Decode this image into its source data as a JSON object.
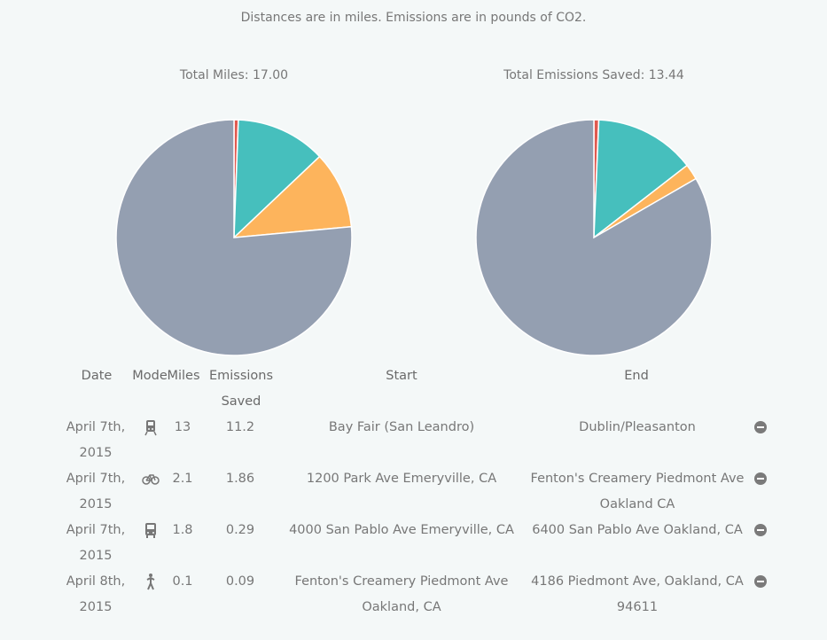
{
  "note": "Distances are in miles. Emissions are in pounds of CO2.",
  "colors": {
    "red": "#e05a4f",
    "teal": "#46bfbd",
    "orange": "#fdb45c",
    "gray": "#949fb1"
  },
  "chart_data": [
    {
      "type": "pie",
      "title": "Total Miles: 17.00",
      "slices": [
        {
          "value": 0.1,
          "color": "#e05a4f"
        },
        {
          "value": 2.1,
          "color": "#46bfbd"
        },
        {
          "value": 1.8,
          "color": "#fdb45c"
        },
        {
          "value": 13,
          "color": "#949fb1"
        }
      ]
    },
    {
      "type": "pie",
      "title": "Total Emissions Saved: 13.44",
      "slices": [
        {
          "value": 0.09,
          "color": "#e05a4f"
        },
        {
          "value": 1.86,
          "color": "#46bfbd"
        },
        {
          "value": 0.29,
          "color": "#fdb45c"
        },
        {
          "value": 11.2,
          "color": "#949fb1"
        }
      ]
    }
  ],
  "table": {
    "headers": {
      "date": "Date",
      "mode": "Mode",
      "miles": "Miles",
      "emissions_line1": "Emissions",
      "emissions_line2": "Saved",
      "start": "Start",
      "end": "End"
    },
    "rows": [
      {
        "date1": "April 7th,",
        "date2": "2015",
        "mode_icon": "train-icon",
        "miles": "13",
        "emissions": "11.2",
        "start1": "Bay Fair (San Leandro)",
        "start2": "",
        "end1": "Dublin/Pleasanton",
        "end2": ""
      },
      {
        "date1": "April 7th,",
        "date2": "2015",
        "mode_icon": "bicycle-icon",
        "miles": "2.1",
        "emissions": "1.86",
        "start1": "1200 Park Ave Emeryville, CA",
        "start2": "",
        "end1": "Fenton's Creamery Piedmont Ave",
        "end2": "Oakland CA"
      },
      {
        "date1": "April 7th,",
        "date2": "2015",
        "mode_icon": "bus-icon",
        "miles": "1.8",
        "emissions": "0.29",
        "start1": "4000 San Pablo Ave Emeryville, CA",
        "start2": "",
        "end1": "6400 San Pablo Ave Oakland, CA",
        "end2": ""
      },
      {
        "date1": "April 8th,",
        "date2": "2015",
        "mode_icon": "walking-icon",
        "miles": "0.1",
        "emissions": "0.09",
        "start1": "Fenton's Creamery Piedmont Ave",
        "start2": "Oakland, CA",
        "end1": "4186 Piedmont Ave, Oakland, CA",
        "end2": "94611"
      }
    ]
  }
}
